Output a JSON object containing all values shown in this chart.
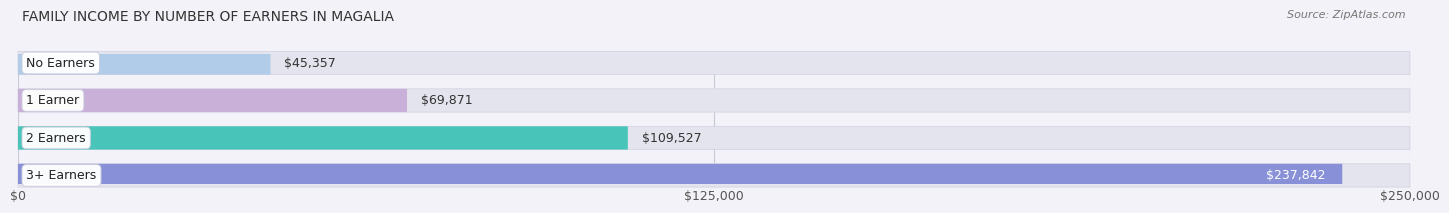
{
  "title": "FAMILY INCOME BY NUMBER OF EARNERS IN MAGALIA",
  "source": "Source: ZipAtlas.com",
  "categories": [
    "No Earners",
    "1 Earner",
    "2 Earners",
    "3+ Earners"
  ],
  "values": [
    45357,
    69871,
    109527,
    237842
  ],
  "bar_colors": [
    "#b0cce8",
    "#c8b0d8",
    "#48c4b8",
    "#8890d8"
  ],
  "background_color": "#f2f2f8",
  "bar_bg_color": "#e4e4ee",
  "xlim": [
    0,
    250000
  ],
  "xticks": [
    0,
    125000,
    250000
  ],
  "xtick_labels": [
    "$0",
    "$125,000",
    "$250,000"
  ],
  "value_labels": [
    "$45,357",
    "$69,871",
    "$109,527",
    "$237,842"
  ],
  "value_inside": [
    false,
    false,
    false,
    true
  ],
  "title_fontsize": 10,
  "label_fontsize": 9,
  "value_fontsize": 9,
  "source_fontsize": 8
}
